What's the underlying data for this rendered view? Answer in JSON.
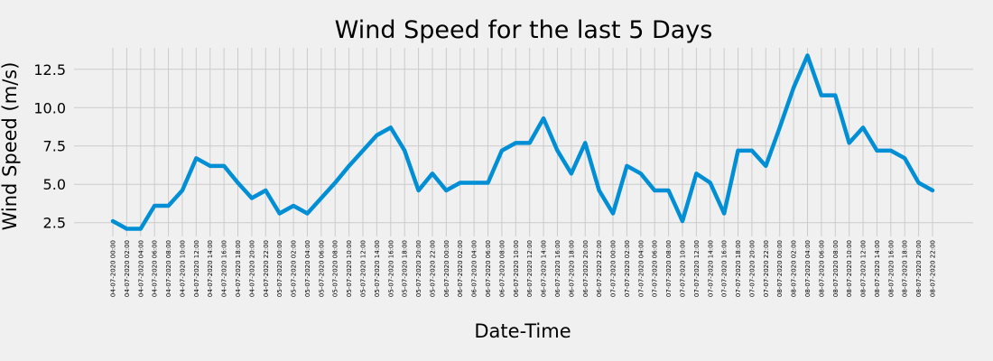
{
  "chart_data": {
    "type": "line",
    "title": "Wind Speed for the last 5 Days",
    "xlabel": "Date-Time",
    "ylabel": "Wind Speed (m/s)",
    "x": [
      "04-07-2020 00:00",
      "04-07-2020 02:00",
      "04-07-2020 04:00",
      "04-07-2020 06:00",
      "04-07-2020 08:00",
      "04-07-2020 10:00",
      "04-07-2020 12:00",
      "04-07-2020 14:00",
      "04-07-2020 16:00",
      "04-07-2020 18:00",
      "04-07-2020 20:00",
      "04-07-2020 22:00",
      "05-07-2020 00:00",
      "05-07-2020 02:00",
      "05-07-2020 04:00",
      "05-07-2020 06:00",
      "05-07-2020 08:00",
      "05-07-2020 10:00",
      "05-07-2020 12:00",
      "05-07-2020 14:00",
      "05-07-2020 16:00",
      "05-07-2020 18:00",
      "05-07-2020 20:00",
      "05-07-2020 22:00",
      "06-07-2020 00:00",
      "06-07-2020 02:00",
      "06-07-2020 04:00",
      "06-07-2020 06:00",
      "06-07-2020 08:00",
      "06-07-2020 10:00",
      "06-07-2020 12:00",
      "06-07-2020 14:00",
      "06-07-2020 16:00",
      "06-07-2020 18:00",
      "06-07-2020 20:00",
      "06-07-2020 22:00",
      "07-07-2020 00:00",
      "07-07-2020 02:00",
      "07-07-2020 04:00",
      "07-07-2020 06:00",
      "07-07-2020 08:00",
      "07-07-2020 10:00",
      "07-07-2020 12:00",
      "07-07-2020 14:00",
      "07-07-2020 16:00",
      "07-07-2020 18:00",
      "07-07-2020 20:00",
      "07-07-2020 22:00",
      "08-07-2020 00:00",
      "08-07-2020 02:00",
      "08-07-2020 04:00",
      "08-07-2020 06:00",
      "08-07-2020 08:00",
      "08-07-2020 10:00",
      "08-07-2020 12:00",
      "08-07-2020 14:00",
      "08-07-2020 16:00",
      "08-07-2020 18:00",
      "08-07-2020 20:00",
      "08-07-2020 22:00"
    ],
    "series": [
      {
        "values": [
          2.6,
          2.1,
          2.1,
          3.6,
          3.6,
          4.6,
          6.7,
          6.2,
          6.2,
          5.1,
          4.1,
          4.6,
          3.1,
          3.6,
          3.1,
          4.1,
          5.1,
          6.2,
          7.2,
          8.2,
          8.7,
          7.2,
          4.6,
          5.7,
          4.6,
          5.1,
          5.1,
          5.1,
          7.2,
          7.7,
          7.7,
          9.3,
          7.2,
          5.7,
          7.7,
          4.6,
          3.1,
          6.2,
          5.7,
          4.6,
          4.6,
          2.6,
          5.7,
          5.1,
          3.1,
          7.2,
          7.2,
          6.2,
          8.7,
          11.3,
          13.4,
          10.8,
          10.8,
          7.7,
          8.7,
          7.2,
          7.2,
          6.7,
          5.1,
          4.6
        ],
        "color": "#008fd5"
      }
    ],
    "yticks": [
      2.5,
      5.0,
      7.5,
      10.0,
      12.5
    ],
    "ytick_labels": [
      "2.5",
      "5.0",
      "7.5",
      "10.0",
      "12.5"
    ],
    "ylim": [
      1.6,
      13.9
    ],
    "grid": true,
    "background": "#f0f0f0",
    "grid_color": "#cbcbcb"
  }
}
